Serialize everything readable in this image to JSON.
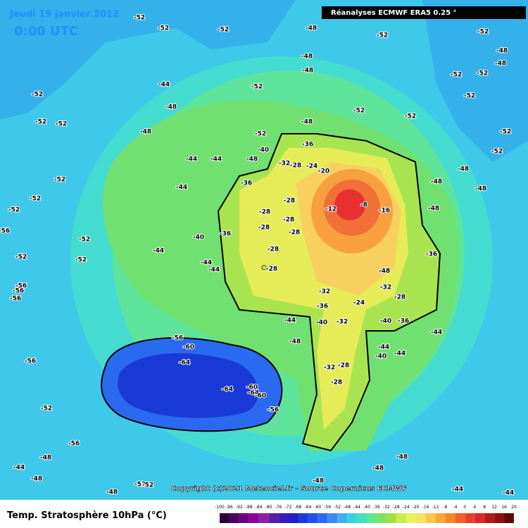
{
  "header": {
    "date": "Jeudi 19 janvier 2012",
    "time": "0:00 UTC",
    "source": "Réanalyses ECMWF ERA5 0.25 °"
  },
  "copyright": "Copyright (c)2021 Meteociel.fr - Source Copernicus ECMWF",
  "footer": {
    "title": "Temp. Stratosphère 10hPa (°C)"
  },
  "colorbar": {
    "labels": [
      "-100",
      "-96",
      "-92",
      "-88",
      "-84",
      "-80",
      "-76",
      "-72",
      "-68",
      "-64",
      "-60",
      "-56",
      "-52",
      "-48",
      "-44",
      "-40",
      "-36",
      "-32",
      "-28",
      "-24",
      "-20",
      "-16",
      "-12",
      "-8",
      "-4",
      "0",
      "4",
      "8",
      "12",
      "16",
      "20"
    ],
    "colors": [
      "#2a0033",
      "#4b0060",
      "#6a0080",
      "#8a0099",
      "#8c1fa8",
      "#5a1aa8",
      "#3a1ab8",
      "#2020c8",
      "#1a3ad8",
      "#2050e8",
      "#2a6af0",
      "#3a8af4",
      "#40b0f0",
      "#38d0e8",
      "#40e0c0",
      "#60e890",
      "#80e060",
      "#a0e040",
      "#c8ec50",
      "#e8f060",
      "#f8e060",
      "#f8c848",
      "#f8a838",
      "#f88830",
      "#f06028",
      "#e84028",
      "#d82828",
      "#b81818",
      "#901010",
      "#600808"
    ]
  },
  "contour_labels": [
    "-52",
    "-52",
    "-52",
    "-48",
    "-52",
    "-52",
    "-48",
    "-48",
    "-48",
    "-48",
    "-52",
    "-52",
    "-52",
    "-44",
    "-52",
    "-52",
    "-48",
    "-52",
    "-52",
    "-52",
    "-52",
    "-48",
    "-48",
    "-52",
    "-52",
    "-52",
    "-44",
    "-44",
    "-48",
    "-48",
    "-52",
    "-44",
    "-48",
    "-48",
    "-52",
    "-52",
    "-48",
    "-56",
    "-52",
    "-44",
    "-52",
    "-40",
    "-36",
    "-36",
    "-28",
    "-28",
    "-28",
    "-28",
    "-28",
    "-28",
    "-28",
    "-20",
    "-12",
    "-8",
    "-16",
    "-24",
    "-28",
    "-32",
    "-36",
    "-40",
    "-36",
    "-32",
    "-28",
    "-24",
    "-32",
    "-36",
    "-32",
    "-40",
    "-40",
    "-36",
    "-44",
    "-44",
    "-44",
    "-40",
    "-44",
    "-28",
    "-28",
    "-32",
    "-48",
    "-56",
    "-60",
    "-64",
    "-64",
    "-60",
    "-64",
    "-60",
    "-56",
    "-56",
    "-52",
    "-56",
    "-48",
    "-44",
    "-48",
    "-48",
    "-52",
    "-52",
    "-44",
    "-44",
    "-48",
    "-48",
    "-48",
    "-48",
    "-44",
    "-44",
    "-56",
    "-56",
    "-56",
    "-52"
  ]
}
